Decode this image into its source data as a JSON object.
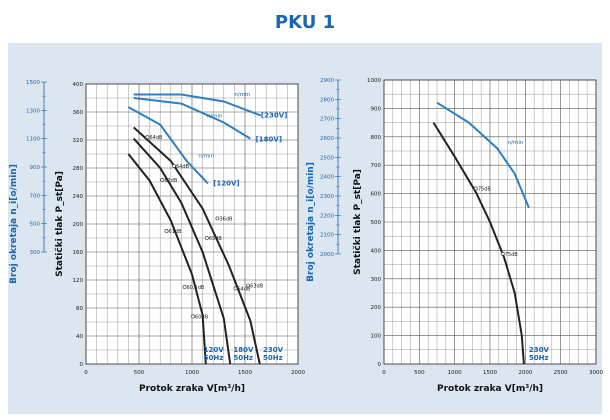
{
  "title": "PKU 1",
  "chart_data": [
    {
      "type": "line",
      "ylabel": "Statički tlak P_st[Pa]",
      "y2label": "Broj okretaja n_i[o/min]",
      "xlabel": "Protok zraka V[m³/h]",
      "xlim": [
        0,
        2000
      ],
      "ylim": [
        0,
        400
      ],
      "y2lim": [
        200,
        1400
      ],
      "xticks": [
        "0",
        "500",
        "1000",
        "1500",
        "2000"
      ],
      "yticks": [
        "0",
        "40",
        "80",
        "120",
        "160",
        "200",
        "240",
        "280",
        "320",
        "360",
        "400"
      ],
      "y2ticks": [
        "300",
        "500",
        "700",
        "900",
        "1100",
        "1300",
        "1500"
      ],
      "grid": true,
      "pressure_curves": [
        {
          "points": [
            [
              400,
              300
            ],
            [
              600,
              262
            ],
            [
              800,
              205
            ],
            [
              1000,
              128
            ],
            [
              1100,
              70
            ],
            [
              1130,
              0
            ]
          ]
        },
        {
          "points": [
            [
              450,
              322
            ],
            [
              700,
              280
            ],
            [
              900,
              230
            ],
            [
              1100,
              160
            ],
            [
              1300,
              65
            ],
            [
              1360,
              0
            ]
          ]
        },
        {
          "points": [
            [
              450,
              338
            ],
            [
              800,
              290
            ],
            [
              1100,
              222
            ],
            [
              1350,
              140
            ],
            [
              1550,
              62
            ],
            [
              1640,
              0
            ]
          ]
        }
      ],
      "speed_curves": [
        {
          "name": "n/min",
          "points": [
            [
              450,
              385
            ],
            [
              900,
              385
            ],
            [
              1300,
              375
            ],
            [
              1650,
              355
            ]
          ]
        },
        {
          "name": "n/min",
          "points": [
            [
              450,
              380
            ],
            [
              900,
              372
            ],
            [
              1300,
              345
            ],
            [
              1550,
              322
            ]
          ]
        },
        {
          "name": "n/min",
          "points": [
            [
              400,
              367
            ],
            [
              700,
              342
            ],
            [
              950,
              290
            ],
            [
              1150,
              258
            ]
          ]
        }
      ],
      "voltage_labels": [
        {
          "text": "[230V]",
          "x": 1650,
          "y": 352
        },
        {
          "text": "[180V]",
          "x": 1600,
          "y": 318
        },
        {
          "text": "[120V]",
          "x": 1200,
          "y": 255
        }
      ],
      "speed_labels": [
        {
          "text": "n/min",
          "x": 1400,
          "y": 383
        },
        {
          "text": "n/min",
          "x": 1140,
          "y": 352
        },
        {
          "text": "n/min",
          "x": 1060,
          "y": 295
        }
      ],
      "point_labels": [
        {
          "text": "64dB",
          "x": 580,
          "y": 324
        },
        {
          "text": "64dB",
          "x": 830,
          "y": 283
        },
        {
          "text": "62dB",
          "x": 720,
          "y": 263
        },
        {
          "text": "36dB",
          "x": 1240,
          "y": 208
        },
        {
          "text": "61dB",
          "x": 760,
          "y": 190
        },
        {
          "text": "65dB",
          "x": 1140,
          "y": 180
        },
        {
          "text": "60,5dB",
          "x": 930,
          "y": 110
        },
        {
          "text": "64dB",
          "x": 1410,
          "y": 108
        },
        {
          "text": "63dB",
          "x": 1530,
          "y": 112
        },
        {
          "text": "60dB",
          "x": 1010,
          "y": 68
        }
      ],
      "bottom_labels": [
        {
          "volt": "120V",
          "hz": "50Hz",
          "x": 1110
        },
        {
          "volt": "180V",
          "hz": "50Hz",
          "x": 1390
        },
        {
          "volt": "230V",
          "hz": "50Hz",
          "x": 1670
        }
      ]
    },
    {
      "type": "line",
      "ylabel": "Statički tlak P_st[Pa]",
      "y2label": "Broj okretaja n_i[o/min]",
      "xlabel": "Protok zraka V[m³/h]",
      "xlim": [
        0,
        3000
      ],
      "ylim": [
        0,
        1000
      ],
      "y2lim": [
        2000,
        3000
      ],
      "xticks": [
        "0",
        "500",
        "1000",
        "1500",
        "2000",
        "2500",
        "3000"
      ],
      "yticks": [
        "0",
        "100",
        "200",
        "300",
        "400",
        "500",
        "600",
        "700",
        "800",
        "900",
        "1000"
      ],
      "y2ticks": [
        "2000",
        "2100",
        "2200",
        "2300",
        "2400",
        "2500",
        "2600",
        "2700",
        "2800",
        "2900"
      ],
      "grid": true,
      "pressure_curves": [
        {
          "points": [
            [
              700,
              850
            ],
            [
              1000,
              730
            ],
            [
              1300,
              605
            ],
            [
              1500,
              500
            ],
            [
              1700,
              375
            ],
            [
              1850,
              250
            ],
            [
              1950,
              100
            ],
            [
              1980,
              0
            ]
          ]
        }
      ],
      "speed_curves": [
        {
          "name": "n/min",
          "points": [
            [
              750,
              920
            ],
            [
              1200,
              850
            ],
            [
              1600,
              760
            ],
            [
              1850,
              670
            ],
            [
              2050,
              550
            ]
          ]
        }
      ],
      "point_labels": [
        {
          "text": "75dB",
          "x": 1300,
          "y": 618
        },
        {
          "text": "75dB",
          "x": 1680,
          "y": 388
        }
      ],
      "speed_labels": [
        {
          "text": "n/min",
          "x": 1750,
          "y": 775
        }
      ],
      "bottom_labels": [
        {
          "volt": "230V",
          "hz": "50Hz",
          "x": 2050
        }
      ]
    }
  ]
}
